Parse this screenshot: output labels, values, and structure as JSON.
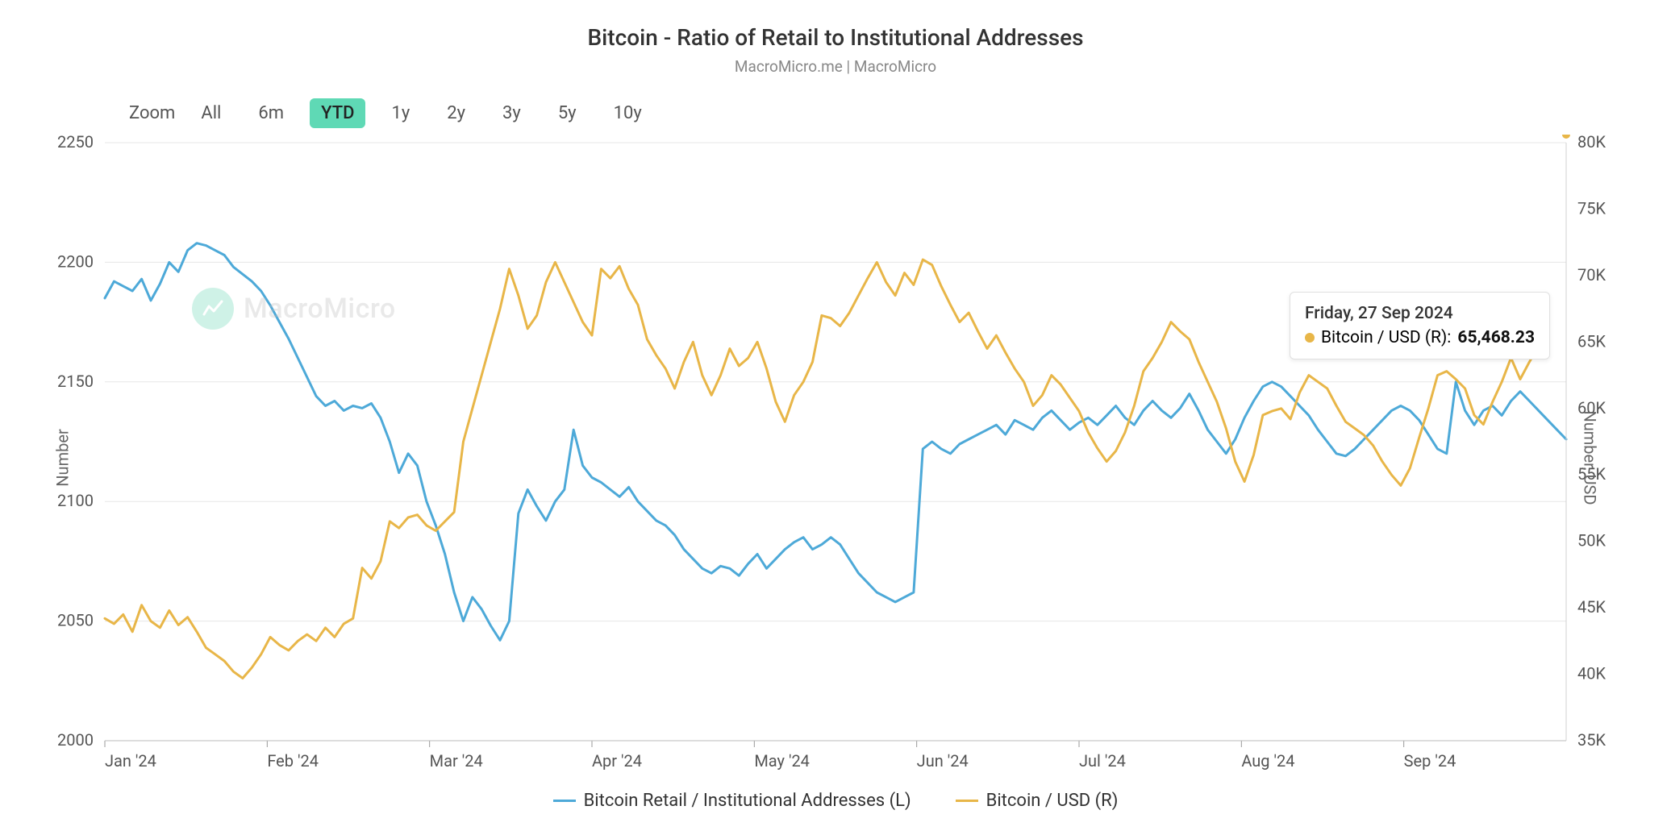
{
  "title": "Bitcoin - Ratio of Retail to Institutional Addresses",
  "subtitle": "MacroMicro.me | MacroMicro",
  "watermark_text": "MacroMicro",
  "zoom": {
    "label": "Zoom",
    "options": [
      "All",
      "6m",
      "YTD",
      "1y",
      "2y",
      "3y",
      "5y",
      "10y"
    ],
    "active": "YTD"
  },
  "left_axis": {
    "label": "Number",
    "min": 2000,
    "max": 2250,
    "ticks": [
      2000,
      2050,
      2100,
      2150,
      2200,
      2250
    ],
    "tick_labels": [
      "2000",
      "2050",
      "2100",
      "2150",
      "2200",
      "2250"
    ],
    "fontsize": 20,
    "color": "#555555"
  },
  "right_axis": {
    "label": "Number, USD",
    "min": 35000,
    "max": 80000,
    "ticks": [
      35000,
      40000,
      45000,
      50000,
      55000,
      60000,
      65000,
      70000,
      75000,
      80000
    ],
    "tick_labels": [
      "35K",
      "40K",
      "45K",
      "50K",
      "55K",
      "60K",
      "65K",
      "70K",
      "75K",
      "80K"
    ],
    "fontsize": 20,
    "color": "#555555"
  },
  "x_axis": {
    "categories": [
      "Jan '24",
      "Feb '24",
      "Mar '24",
      "Apr '24",
      "May '24",
      "Jun '24",
      "Jul '24",
      "Aug '24",
      "Sep '24"
    ],
    "fontsize": 20,
    "color": "#555555"
  },
  "grid": {
    "color": "#e7e7e7",
    "width": 1
  },
  "background_color": "#ffffff",
  "series": [
    {
      "name": "Bitcoin Retail / Institutional Addresses (L)",
      "axis": "left",
      "color": "#4da9d8",
      "line_width": 3,
      "data": [
        2185,
        2192,
        2190,
        2188,
        2193,
        2184,
        2191,
        2200,
        2196,
        2205,
        2208,
        2207,
        2205,
        2203,
        2198,
        2195,
        2192,
        2188,
        2182,
        2175,
        2168,
        2160,
        2152,
        2144,
        2140,
        2142,
        2138,
        2140,
        2139,
        2141,
        2135,
        2125,
        2112,
        2120,
        2115,
        2100,
        2090,
        2078,
        2062,
        2050,
        2060,
        2055,
        2048,
        2042,
        2050,
        2095,
        2105,
        2098,
        2092,
        2100,
        2105,
        2130,
        2115,
        2110,
        2108,
        2105,
        2102,
        2106,
        2100,
        2096,
        2092,
        2090,
        2086,
        2080,
        2076,
        2072,
        2070,
        2073,
        2072,
        2069,
        2074,
        2078,
        2072,
        2076,
        2080,
        2083,
        2085,
        2080,
        2082,
        2085,
        2082,
        2076,
        2070,
        2066,
        2062,
        2060,
        2058,
        2060,
        2062,
        2122,
        2125,
        2122,
        2120,
        2124,
        2126,
        2128,
        2130,
        2132,
        2128,
        2134,
        2132,
        2130,
        2135,
        2138,
        2134,
        2130,
        2133,
        2135,
        2132,
        2136,
        2140,
        2135,
        2132,
        2138,
        2142,
        2138,
        2135,
        2139,
        2145,
        2138,
        2130,
        2125,
        2120,
        2126,
        2135,
        2142,
        2148,
        2150,
        2148,
        2144,
        2140,
        2136,
        2130,
        2125,
        2120,
        2119,
        2122,
        2126,
        2130,
        2134,
        2138,
        2140,
        2138,
        2134,
        2128,
        2122,
        2120,
        2150,
        2138,
        2132,
        2138,
        2140,
        2136,
        2142,
        2146,
        2142,
        2138,
        2134,
        2130,
        2126
      ]
    },
    {
      "name": "Bitcoin / USD (R)",
      "axis": "right",
      "color": "#e8b648",
      "line_width": 3,
      "data": [
        44200,
        43800,
        44500,
        43200,
        45200,
        44000,
        43500,
        44800,
        43700,
        44300,
        43200,
        42000,
        41500,
        41000,
        40200,
        39700,
        40500,
        41500,
        42800,
        42200,
        41800,
        42500,
        43000,
        42500,
        43500,
        42800,
        43800,
        44200,
        48000,
        47200,
        48500,
        51500,
        51000,
        51800,
        52000,
        51200,
        50800,
        51500,
        52200,
        57500,
        60000,
        62500,
        65000,
        67500,
        70500,
        68500,
        66000,
        67000,
        69500,
        71000,
        69500,
        68000,
        66500,
        65500,
        70500,
        69800,
        70700,
        69000,
        67800,
        65200,
        64000,
        63000,
        61500,
        63500,
        65000,
        62500,
        61000,
        62500,
        64500,
        63200,
        63800,
        65000,
        63000,
        60500,
        59000,
        61000,
        62000,
        63500,
        67000,
        66800,
        66200,
        67200,
        68500,
        69800,
        71000,
        69500,
        68500,
        70200,
        69300,
        71200,
        70800,
        69200,
        67800,
        66500,
        67200,
        65800,
        64500,
        65500,
        64200,
        63000,
        62000,
        60200,
        61000,
        62500,
        61800,
        60800,
        59800,
        58200,
        57000,
        56000,
        56800,
        58200,
        60200,
        62800,
        63800,
        65000,
        66500,
        65800,
        65200,
        63500,
        62000,
        60500,
        58500,
        56000,
        54500,
        56500,
        59500,
        59800,
        60000,
        59200,
        61200,
        62500,
        62000,
        61500,
        60200,
        59000,
        58500,
        58000,
        57200,
        56000,
        55000,
        54200,
        55500,
        57800,
        60000,
        62500,
        62800,
        62200,
        61500,
        59500,
        58800,
        60500,
        62000,
        63800,
        62200,
        63500,
        64700,
        65468
      ]
    }
  ],
  "legend": {
    "items": [
      {
        "label": "Bitcoin Retail / Institutional Addresses (L)",
        "color": "#4da9d8"
      },
      {
        "label": "Bitcoin / USD (R)",
        "color": "#e8b648"
      }
    ],
    "fontsize": 22
  },
  "tooltip": {
    "date": "Friday, 27 Sep 2024",
    "series_label": "Bitcoin / USD (R):",
    "value": "65,468.23",
    "dot_color": "#e8b648"
  },
  "watermark_color": "#6ed7b7"
}
